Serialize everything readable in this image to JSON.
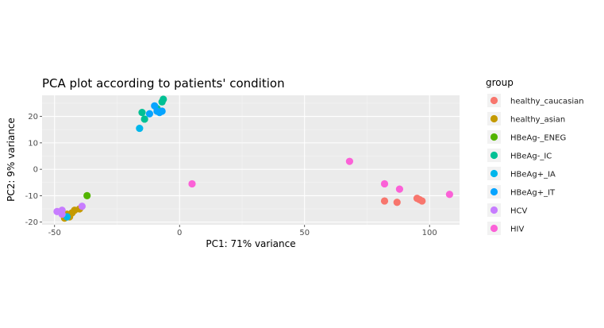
{
  "chart_data": {
    "type": "scatter",
    "title": "PCA plot according to patients' condition",
    "xlabel": "PC1: 71% variance",
    "ylabel": "PC2: 9% variance",
    "xlim": [
      -55,
      112
    ],
    "ylim": [
      -21,
      28
    ],
    "xticks": [
      -50,
      0,
      50,
      100
    ],
    "yticks": [
      -20,
      -10,
      0,
      10,
      20
    ],
    "grid": true,
    "legend_position": "right",
    "legend_title": "group",
    "series": [
      {
        "name": "healthy_caucasian",
        "color": "#F8766D",
        "points": [
          [
            82,
            -12
          ],
          [
            87,
            -12.5
          ],
          [
            95,
            -11
          ],
          [
            96,
            -11.5
          ],
          [
            97,
            -12
          ]
        ]
      },
      {
        "name": "healthy_asian",
        "color": "#C49A00",
        "points": [
          [
            -46,
            -18.5
          ],
          [
            -44,
            -18
          ],
          [
            -43,
            -16.5
          ],
          [
            -42,
            -15.5
          ],
          [
            -40,
            -15
          ],
          [
            -45,
            -17
          ]
        ]
      },
      {
        "name": "HBeAg-_ENEG",
        "color": "#53B400",
        "points": [
          [
            -37,
            -10
          ]
        ]
      },
      {
        "name": "HBeAg-_IC",
        "color": "#00C094",
        "points": [
          [
            -15,
            21.5
          ],
          [
            -14,
            19
          ],
          [
            -9,
            23
          ],
          [
            -7,
            25.5
          ],
          [
            -6.5,
            26.5
          ]
        ]
      },
      {
        "name": "HBeAg+_IA",
        "color": "#00B6EB",
        "points": [
          [
            -16,
            15.5
          ],
          [
            -45,
            -18
          ]
        ]
      },
      {
        "name": "HBeAg+_IT",
        "color": "#06A4FF",
        "points": [
          [
            -12,
            21
          ],
          [
            -10,
            24
          ],
          [
            -9,
            22
          ],
          [
            -8,
            21.5
          ],
          [
            -7,
            22
          ]
        ]
      },
      {
        "name": "HCV",
        "color": "#C77CFF",
        "points": [
          [
            -49,
            -16
          ],
          [
            -47,
            -15.5
          ],
          [
            -39,
            -14
          ],
          [
            -47,
            -17
          ]
        ]
      },
      {
        "name": "HIV",
        "color": "#FB61D7",
        "points": [
          [
            5,
            -5.5
          ],
          [
            68,
            3
          ],
          [
            82,
            -5.5
          ],
          [
            88,
            -7.5
          ],
          [
            108,
            -9.5
          ]
        ]
      }
    ]
  }
}
